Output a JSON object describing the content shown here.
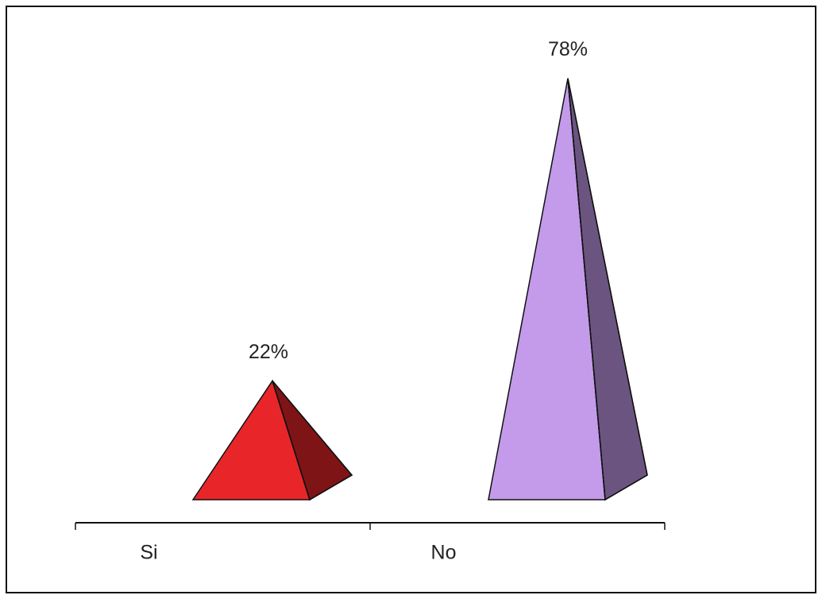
{
  "chart_data": {
    "type": "pyramid",
    "categories": [
      "Si",
      "No"
    ],
    "values": [
      22,
      78
    ],
    "value_labels": [
      "22%",
      "78%"
    ],
    "colors": [
      "#e8262a",
      "#c39bea"
    ]
  }
}
